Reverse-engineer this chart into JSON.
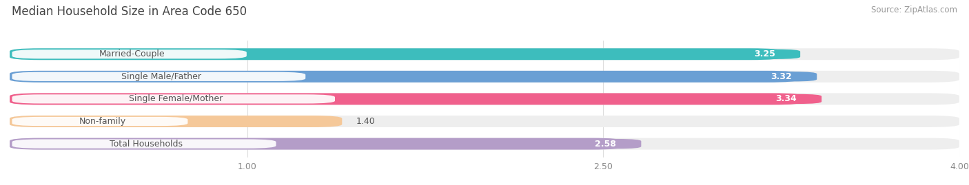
{
  "title": "Median Household Size in Area Code 650",
  "source": "Source: ZipAtlas.com",
  "categories": [
    "Married-Couple",
    "Single Male/Father",
    "Single Female/Mother",
    "Non-family",
    "Total Households"
  ],
  "values": [
    3.25,
    3.32,
    3.34,
    1.4,
    2.58
  ],
  "bar_colors": [
    "#3DBDBD",
    "#6A9FD4",
    "#F0608C",
    "#F5C899",
    "#B49DC8"
  ],
  "bar_bg_color": "#EEEEEE",
  "xlim_start": 0,
  "xlim_end": 4.0,
  "xticks": [
    1.0,
    2.5,
    4.0
  ],
  "label_inside_threshold": 2.0,
  "title_fontsize": 12,
  "source_fontsize": 8.5,
  "bar_label_fontsize": 9,
  "category_fontsize": 9,
  "tick_fontsize": 9,
  "bar_height": 0.52,
  "background_color": "#FFFFFF",
  "fig_width": 14.06,
  "fig_height": 2.69
}
